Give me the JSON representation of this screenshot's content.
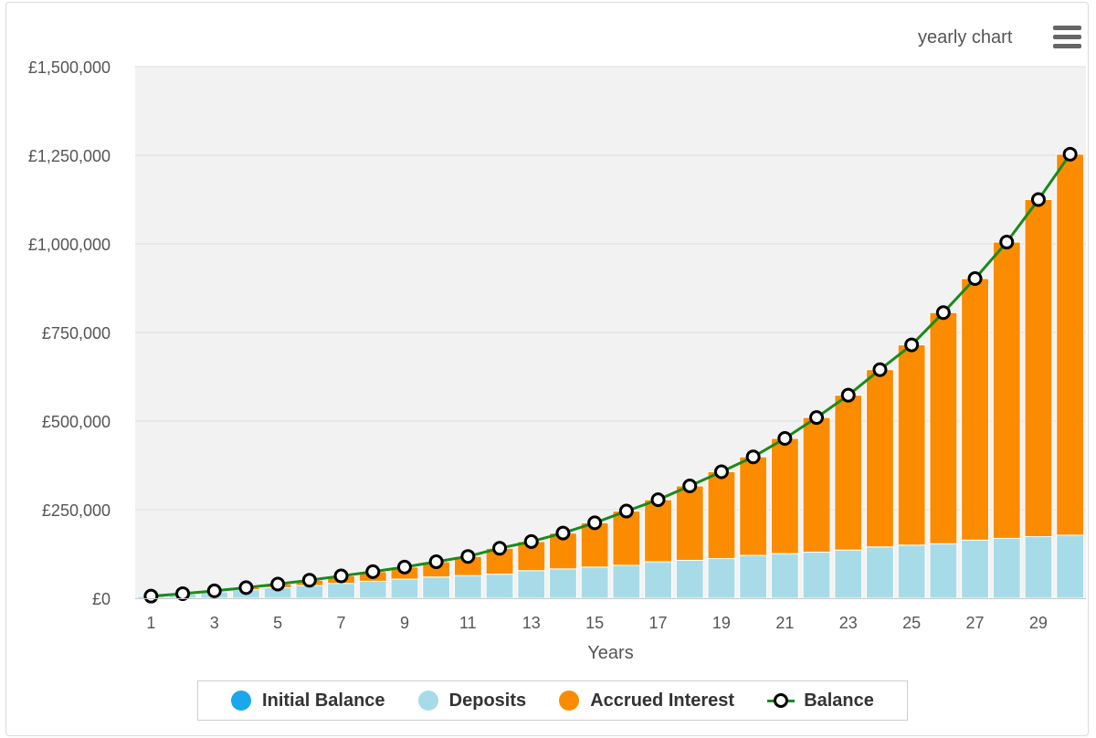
{
  "header": {
    "period_label": "yearly chart",
    "menu_icon": "hamburger-menu-icon"
  },
  "colors": {
    "initial_balance": "#1aa7ec",
    "deposits": "#a8dbe8",
    "accrued_interest": "#fb8c00",
    "balance_line": "#1b8a1b",
    "plot_background": "#f2f2f2"
  },
  "legend": {
    "items": [
      {
        "label": "Initial Balance",
        "marker": "dot",
        "color": "#1aa7ec"
      },
      {
        "label": "Deposits",
        "marker": "dot",
        "color": "#a8dbe8"
      },
      {
        "label": "Accrued Interest",
        "marker": "dot",
        "color": "#fb8c00"
      },
      {
        "label": "Balance",
        "marker": "line-circle",
        "color": "#1b8a1b"
      }
    ]
  },
  "chart_data": {
    "type": "bar",
    "stacked": true,
    "xlabel": "Years",
    "ylabel": "",
    "ylim": [
      0,
      1500000
    ],
    "y_ticks": [
      "£0",
      "£250,000",
      "£500,000",
      "£750,000",
      "£1,000,000",
      "£1,250,000",
      "£1,500,000"
    ],
    "x_tick_labels": [
      "1",
      "3",
      "5",
      "7",
      "9",
      "11",
      "13",
      "15",
      "17",
      "19",
      "21",
      "23",
      "25",
      "27",
      "29"
    ],
    "grid": true,
    "legend_position": "bottom",
    "categories": [
      "1",
      "2",
      "3",
      "4",
      "5",
      "6",
      "7",
      "8",
      "9",
      "10",
      "11",
      "12",
      "13",
      "14",
      "15",
      "16",
      "17",
      "18",
      "19",
      "20",
      "21",
      "22",
      "23",
      "24",
      "25",
      "26",
      "27",
      "28",
      "29",
      "30"
    ],
    "series": [
      {
        "name": "Initial Balance",
        "kind": "bar",
        "values": [
          0,
          0,
          0,
          0,
          0,
          0,
          0,
          0,
          0,
          0,
          0,
          0,
          0,
          0,
          0,
          0,
          0,
          0,
          0,
          0,
          0,
          0,
          0,
          0,
          0,
          0,
          0,
          0,
          0,
          0
        ]
      },
      {
        "name": "Deposits",
        "kind": "bar",
        "values": [
          6000,
          12000,
          18000,
          24000,
          30000,
          36000,
          42000,
          48000,
          54000,
          60000,
          64000,
          68000,
          78000,
          83000,
          88000,
          93000,
          103000,
          107000,
          112000,
          121000,
          126000,
          130000,
          136000,
          145000,
          150000,
          154000,
          164000,
          169000,
          174000,
          178000
        ]
      },
      {
        "name": "Accrued Interest",
        "kind": "bar",
        "values": [
          0,
          1000,
          3000,
          6000,
          10000,
          15000,
          21000,
          27000,
          34000,
          43000,
          54000,
          73000,
          82000,
          101000,
          125000,
          153000,
          175000,
          210000,
          245000,
          278000,
          325000,
          380000,
          437000,
          500000,
          565000,
          652000,
          738000,
          836000,
          951000,
          1075000
        ]
      },
      {
        "name": "Balance",
        "kind": "line",
        "values": [
          6000,
          13000,
          21000,
          30000,
          40000,
          51000,
          63000,
          75000,
          88000,
          103000,
          118000,
          141000,
          160000,
          184000,
          213000,
          246000,
          278000,
          317000,
          357000,
          399000,
          451000,
          510000,
          573000,
          645000,
          715000,
          806000,
          902000,
          1005000,
          1125000,
          1253000
        ]
      }
    ]
  }
}
